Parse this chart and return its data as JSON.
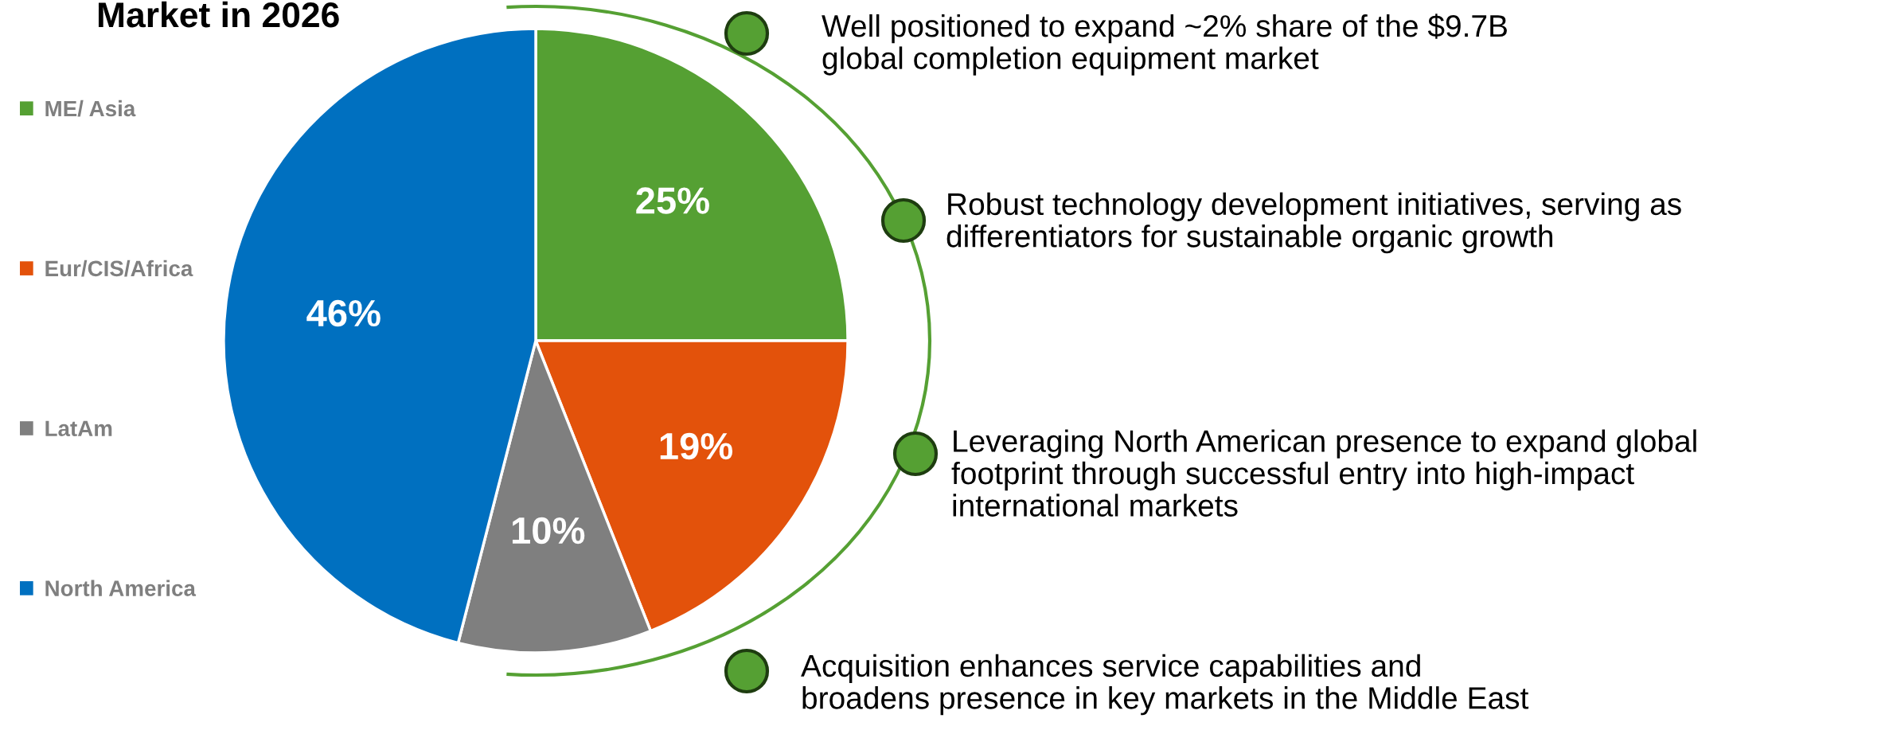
{
  "chart_data": {
    "type": "pie",
    "title": "Market in 2026",
    "categories": [
      "ME/ Asia",
      "Eur/CIS/Africa",
      "LatAm",
      "North America"
    ],
    "values": [
      25,
      19,
      10,
      46
    ],
    "value_labels": [
      "25%",
      "19%",
      "10%",
      "46%"
    ],
    "colors": [
      "#55a033",
      "#e3520b",
      "#7f7f7f",
      "#0070c0"
    ],
    "legend": "left",
    "annotations": [
      "Well positioned to expand ~2% share of the $9.7B\nglobal completion equipment market",
      "Robust technology development initiatives, serving as\ndifferentiators for sustainable organic growth",
      "Leveraging North American presence to expand global\nfootprint through successful entry into high-impact\ninternational markets",
      "Acquisition enhances service capabilities and\nbroadens presence in key markets in the Middle East"
    ]
  }
}
